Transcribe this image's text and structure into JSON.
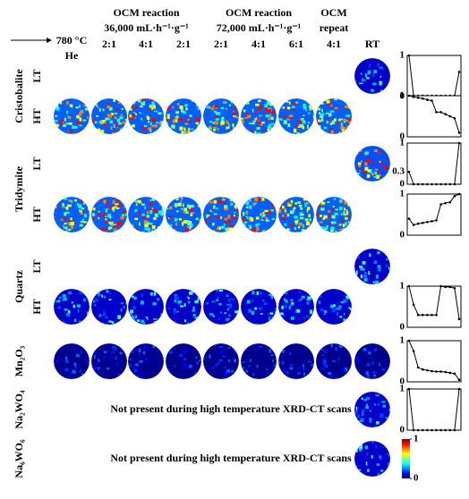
{
  "header": {
    "start": [
      "780 °C",
      "He"
    ],
    "groups": [
      {
        "title": "OCM reaction",
        "rate": "36,000 mL·h⁻¹·g⁻¹",
        "ratios": [
          "2:1",
          "4:1",
          "2:1"
        ]
      },
      {
        "title": "OCM reaction",
        "rate": "72,000 mL·h⁻¹·g⁻¹",
        "ratios": [
          "2:1",
          "4:1",
          "6:1"
        ]
      },
      {
        "title": "OCM",
        "rate": "repeat",
        "ratios": [
          "4:1"
        ]
      }
    ],
    "rt": "RT"
  },
  "phases": [
    {
      "name": "Cristobalite",
      "rows": [
        {
          "label": "LT",
          "rt": true,
          "hot": false,
          "plot": {
            "ylim": [
              0,
              1
            ],
            "yticks": [
              0,
              1
            ],
            "values": [
              1,
              0.02,
              0.02,
              0.02,
              0.02,
              0.02,
              0.02,
              0.02,
              0.02,
              0.02,
              0.02,
              0.6
            ]
          }
        },
        {
          "label": "HT",
          "rt": false,
          "hot": true,
          "plot": {
            "ylim": [
              0,
              1
            ],
            "yticks": [
              0,
              1
            ],
            "values": [
              1,
              0.97,
              0.95,
              0.93,
              0.9,
              0.88,
              0.6,
              0.6,
              0.55,
              0.5,
              0.45,
              0.1
            ]
          }
        }
      ]
    },
    {
      "name": "Tridymite",
      "rows": [
        {
          "label": "LT",
          "rt": true,
          "hot": false,
          "plot": {
            "ylim": [
              0,
              1
            ],
            "yticks": [
              0,
              0.3,
              1
            ],
            "values": [
              0.3,
              0,
              0,
              0,
              0,
              0,
              0,
              0,
              0,
              0,
              0,
              1
            ]
          }
        },
        {
          "label": "HT",
          "rt": false,
          "hot": true,
          "plot": {
            "ylim": [
              0,
              1
            ],
            "yticks": [
              0,
              1
            ],
            "values": [
              0.4,
              0.25,
              0.28,
              0.3,
              0.32,
              0.34,
              0.36,
              0.75,
              0.78,
              0.8,
              0.95,
              1
            ]
          }
        }
      ]
    },
    {
      "name": "Quartz",
      "rows": [
        {
          "label": "LT",
          "rt": true,
          "hot": false
        },
        {
          "label": "HT",
          "rt": false,
          "hot": true,
          "plot": {
            "ylim": [
              0,
              1
            ],
            "yticks": [
              0,
              1
            ],
            "values": [
              1,
              0.55,
              0.3,
              0.3,
              0.3,
              0.3,
              0.3,
              1,
              0.98,
              0.98,
              0.95,
              0.2
            ]
          }
        }
      ]
    },
    {
      "name": "Mn₂O₃",
      "rows": [
        {
          "rt": true,
          "hot": true,
          "plot": {
            "ylim": [
              0,
              1
            ],
            "yticks": [
              0,
              1
            ],
            "values": [
              1,
              0.75,
              0.35,
              0.3,
              0.28,
              0.26,
              0.25,
              0.25,
              0.24,
              0.22,
              0.2,
              0.05
            ]
          }
        }
      ]
    },
    {
      "name": "Na₂WO₄",
      "rows": [
        {
          "rt": true,
          "hot": false,
          "note": "Not present during high temperature XRD-CT scans",
          "plot": {
            "ylim": [
              0,
              1
            ],
            "yticks": [
              0,
              1
            ],
            "values": [
              1,
              0,
              0,
              0,
              0,
              0,
              0,
              0,
              0,
              0,
              0,
              1
            ]
          }
        }
      ]
    },
    {
      "name": "Na₆WO₆",
      "rows": [
        {
          "rt": true,
          "hot": false,
          "note": "Not present during high temperature XRD-CT scans",
          "colorbar": {
            "ticks": [
              0,
              1
            ]
          }
        }
      ]
    }
  ]
}
